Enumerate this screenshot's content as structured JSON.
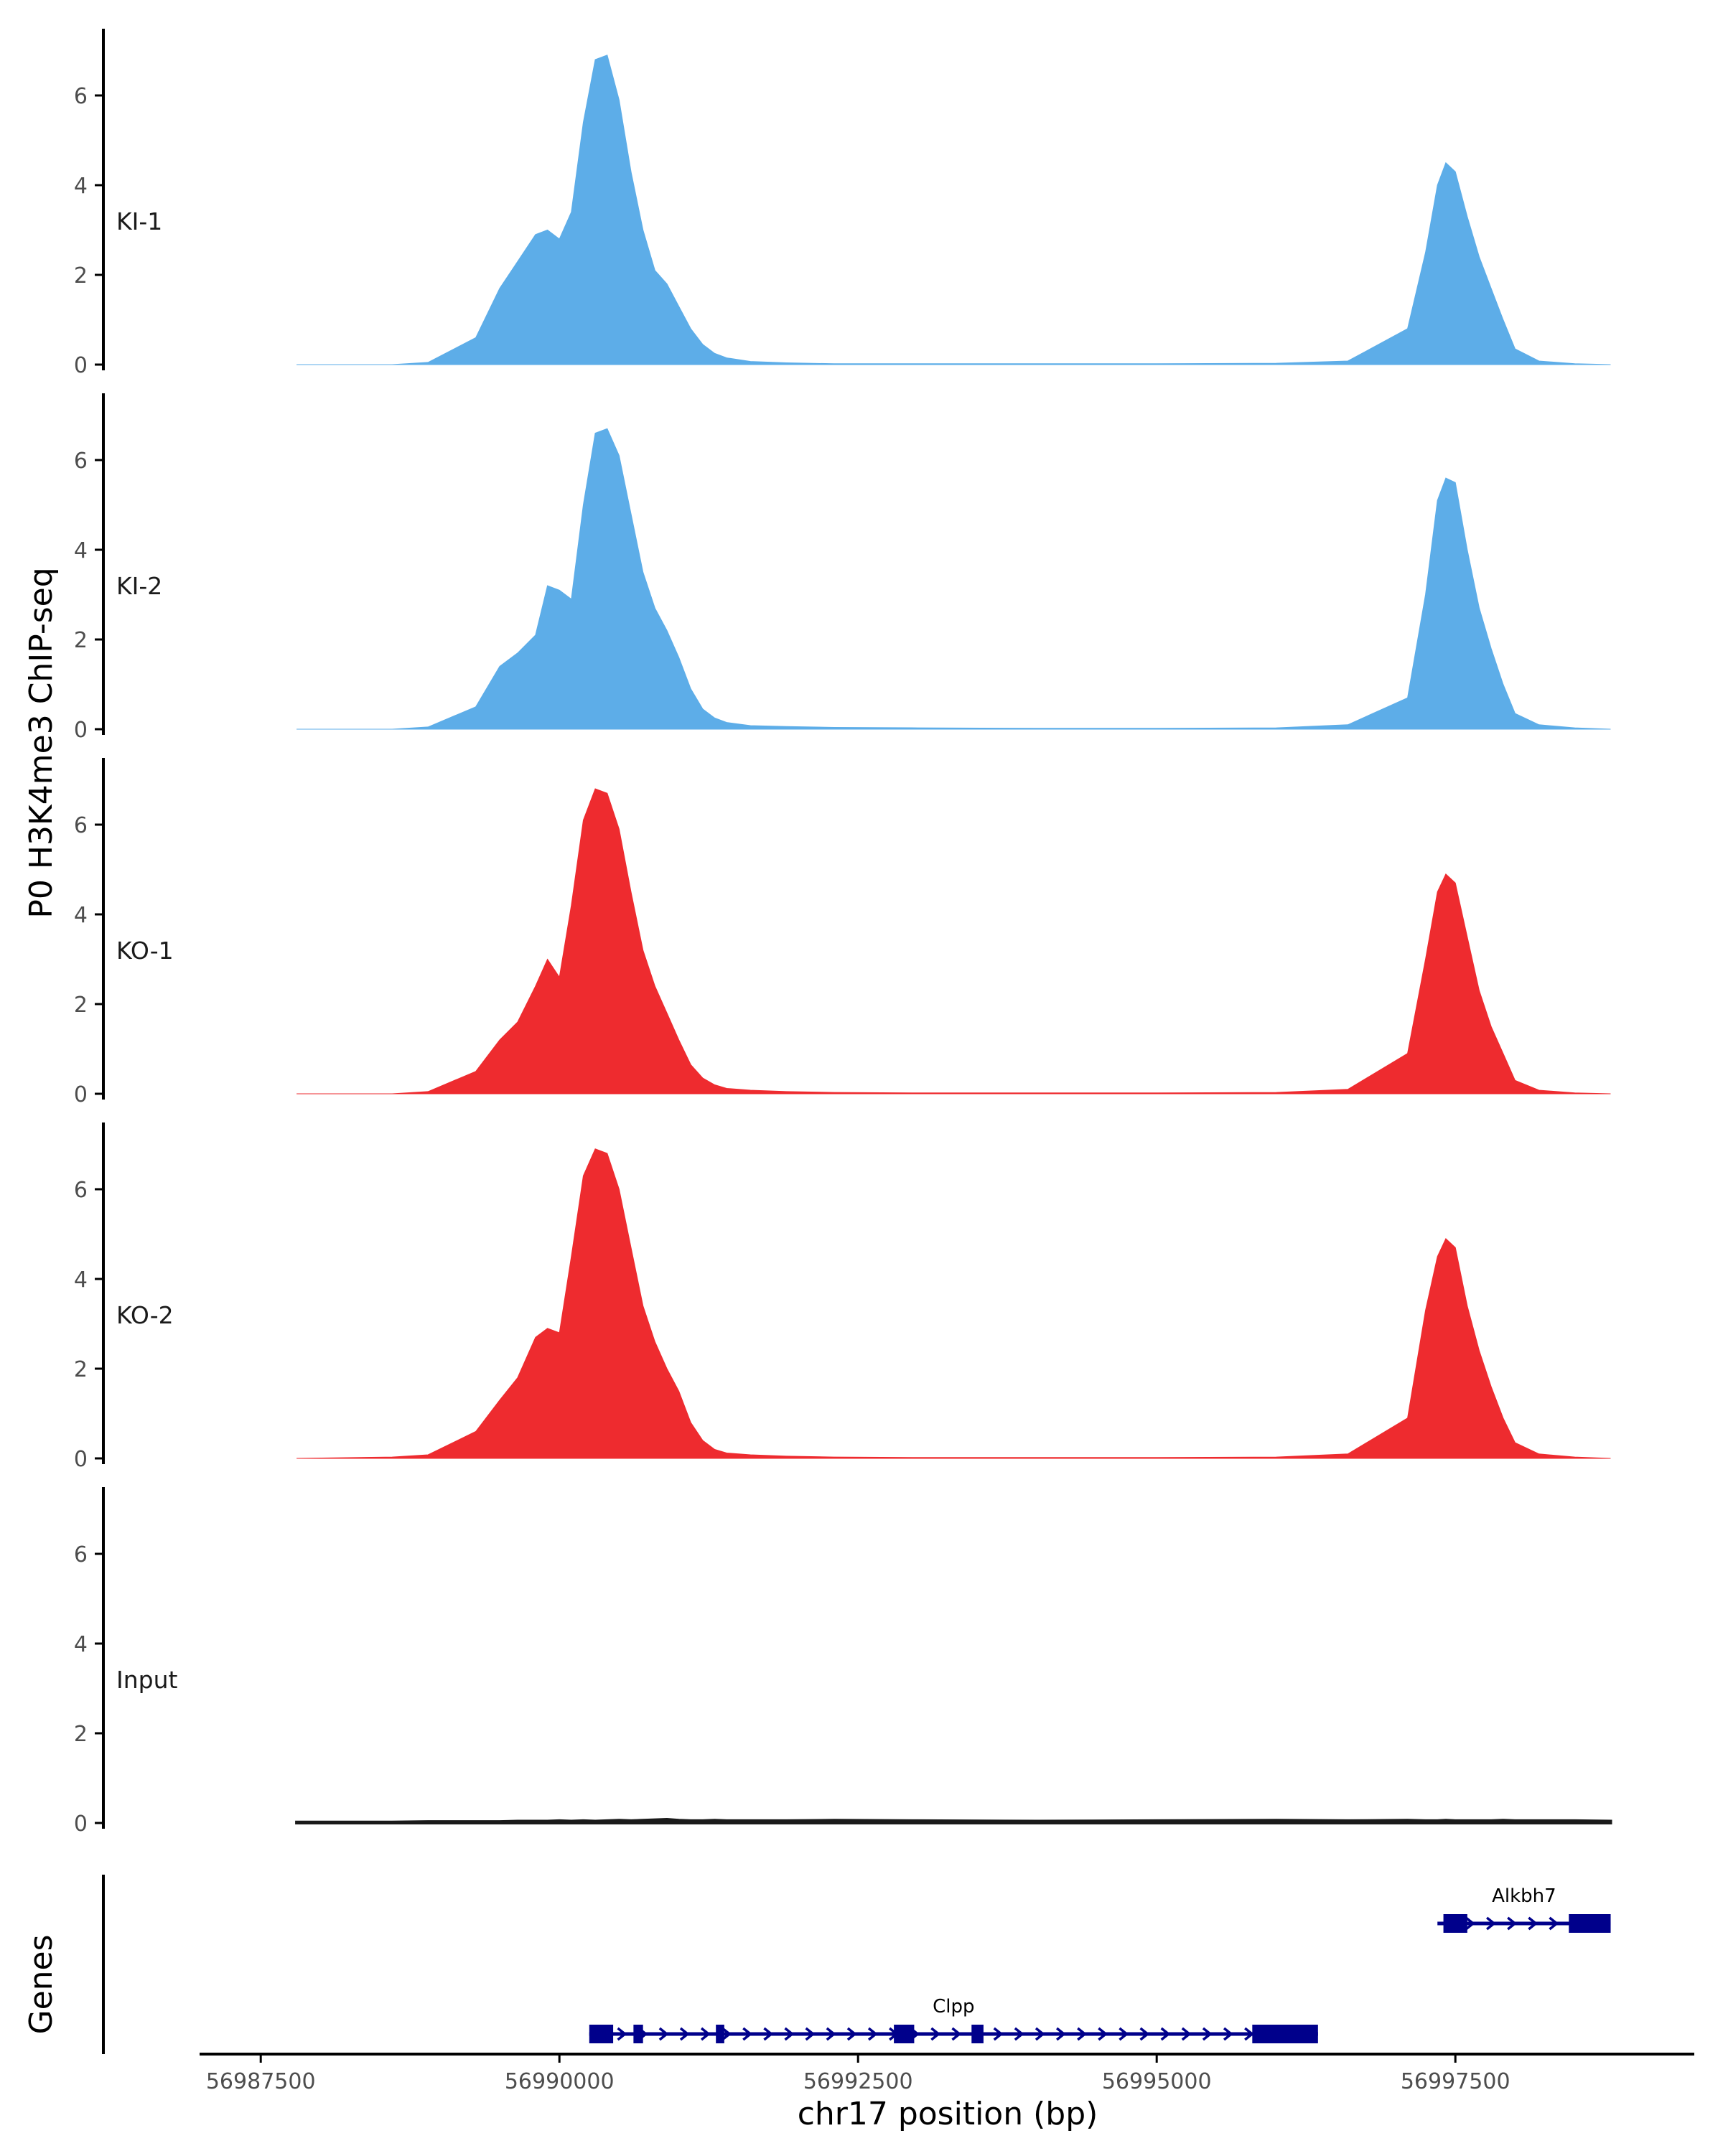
{
  "chart_data": {
    "type": "area",
    "title": "",
    "ylabel": "P0 H3K4me3 ChIP-seq",
    "xlabel": "chr17 position (bp)",
    "genes_label": "Genes",
    "xlim": [
      56987000,
      56999500
    ],
    "ylim": [
      0,
      7.3
    ],
    "y_ticks": [
      "0",
      "2",
      "4",
      "6"
    ],
    "x_ticks": [
      {
        "value": 56987500,
        "label": "56987500"
      },
      {
        "value": 56990000,
        "label": "56990000"
      },
      {
        "value": 56992500,
        "label": "56992500"
      },
      {
        "value": 56995000,
        "label": "56995000"
      },
      {
        "value": 56997500,
        "label": "56997500"
      }
    ],
    "colors": {
      "KI": "#5dade8",
      "KO": "#ee2b2f",
      "Input": "#1a1a1a",
      "gene": "#00008b",
      "axis": "#000000"
    },
    "x": [
      56987800,
      56988600,
      56988900,
      56989300,
      56989500,
      56989650,
      56989800,
      56989900,
      56990000,
      56990100,
      56990200,
      56990300,
      56990400,
      56990500,
      56990600,
      56990700,
      56990800,
      56990900,
      56991000,
      56991100,
      56991200,
      56991300,
      56991400,
      56991600,
      56991900,
      56992300,
      56993000,
      56994000,
      56995000,
      56996000,
      56996600,
      56997100,
      56997250,
      56997350,
      56997420,
      56997500,
      56997600,
      56997700,
      56997800,
      56997900,
      56998000,
      56998200,
      56998500,
      56998800
    ],
    "series": [
      {
        "name": "KI-1",
        "group": "KI",
        "values": [
          0,
          0,
          0.05,
          0.6,
          1.7,
          2.3,
          2.9,
          3.0,
          2.8,
          3.4,
          5.4,
          6.8,
          6.9,
          5.9,
          4.3,
          3.0,
          2.1,
          1.8,
          1.3,
          0.8,
          0.45,
          0.25,
          0.15,
          0.07,
          0.04,
          0.02,
          0.02,
          0.02,
          0.02,
          0.03,
          0.08,
          0.8,
          2.5,
          4.0,
          4.5,
          4.3,
          3.3,
          2.4,
          1.7,
          1.0,
          0.35,
          0.08,
          0.02,
          0
        ]
      },
      {
        "name": "KI-2",
        "group": "KI",
        "values": [
          0,
          0,
          0.05,
          0.5,
          1.4,
          1.7,
          2.1,
          3.2,
          3.1,
          2.9,
          5.0,
          6.6,
          6.7,
          6.1,
          4.8,
          3.5,
          2.7,
          2.2,
          1.6,
          0.9,
          0.45,
          0.25,
          0.15,
          0.08,
          0.06,
          0.04,
          0.03,
          0.02,
          0.02,
          0.03,
          0.1,
          0.7,
          3.0,
          5.1,
          5.6,
          5.5,
          4.0,
          2.7,
          1.8,
          1.0,
          0.35,
          0.1,
          0.03,
          0
        ]
      },
      {
        "name": "KO-1",
        "group": "KO",
        "values": [
          0,
          0,
          0.05,
          0.5,
          1.2,
          1.6,
          2.4,
          3.0,
          2.6,
          4.2,
          6.1,
          6.8,
          6.7,
          5.9,
          4.5,
          3.2,
          2.4,
          1.8,
          1.2,
          0.65,
          0.35,
          0.2,
          0.12,
          0.08,
          0.05,
          0.03,
          0.02,
          0.02,
          0.02,
          0.03,
          0.1,
          0.9,
          3.0,
          4.5,
          4.9,
          4.7,
          3.5,
          2.3,
          1.5,
          0.9,
          0.3,
          0.08,
          0.02,
          0
        ]
      },
      {
        "name": "KO-2",
        "group": "KO",
        "values": [
          0,
          0.03,
          0.08,
          0.6,
          1.3,
          1.8,
          2.7,
          2.9,
          2.8,
          4.5,
          6.3,
          6.9,
          6.8,
          6.0,
          4.7,
          3.4,
          2.6,
          2.0,
          1.5,
          0.8,
          0.4,
          0.2,
          0.12,
          0.08,
          0.05,
          0.03,
          0.02,
          0.02,
          0.02,
          0.03,
          0.1,
          0.9,
          3.3,
          4.5,
          4.9,
          4.7,
          3.4,
          2.4,
          1.6,
          0.9,
          0.35,
          0.1,
          0.03,
          0
        ]
      },
      {
        "name": "Input",
        "group": "Input",
        "values": [
          0.02,
          0.02,
          0.03,
          0.03,
          0.03,
          0.04,
          0.04,
          0.04,
          0.05,
          0.04,
          0.05,
          0.04,
          0.05,
          0.06,
          0.05,
          0.06,
          0.07,
          0.08,
          0.06,
          0.05,
          0.05,
          0.06,
          0.05,
          0.05,
          0.05,
          0.06,
          0.05,
          0.04,
          0.05,
          0.06,
          0.05,
          0.06,
          0.05,
          0.05,
          0.06,
          0.05,
          0.05,
          0.05,
          0.05,
          0.06,
          0.05,
          0.05,
          0.05,
          0.04
        ]
      }
    ],
    "genes": [
      {
        "name": "Clpp",
        "start": 56990250,
        "end": 56996350,
        "row": 1,
        "strand": "+",
        "exons": [
          [
            56990250,
            56990450
          ],
          [
            56990620,
            56990700
          ],
          [
            56991310,
            56991380
          ],
          [
            56992800,
            56992970
          ],
          [
            56993450,
            56993550
          ],
          [
            56995800,
            56996350
          ]
        ]
      },
      {
        "name": "Alkbh7",
        "start": 56997350,
        "end": 56998800,
        "row": 0,
        "strand": "+",
        "exons": [
          [
            56997400,
            56997600
          ],
          [
            56998450,
            56998800
          ]
        ]
      }
    ]
  }
}
